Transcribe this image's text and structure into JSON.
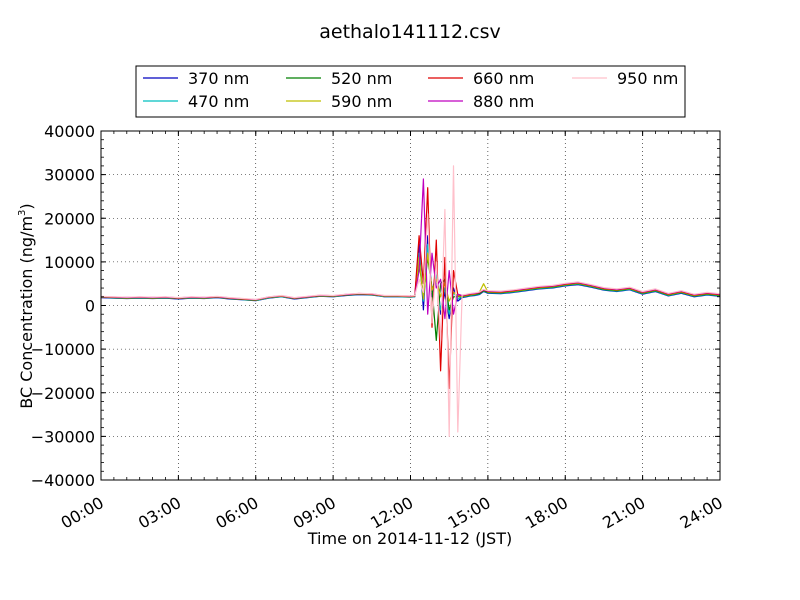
{
  "chart_data": {
    "type": "line",
    "title": "aethalo141112.csv",
    "xlabel": "Time on 2014-11-12 (JST)",
    "ylabel": "BC Concentration (ng/m",
    "ylabel_sup": "3",
    "ylabel_tail": ")",
    "xlim": [
      "00:00",
      "24:00"
    ],
    "ylim": [
      -40000,
      40000
    ],
    "x_ticks": [
      "00:00",
      "03:00",
      "06:00",
      "09:00",
      "12:00",
      "15:00",
      "18:00",
      "21:00",
      "24:00"
    ],
    "y_ticks": [
      "−40000",
      "−30000",
      "−20000",
      "−10000",
      "0",
      "10000",
      "20000",
      "30000",
      "40000"
    ],
    "grid": true,
    "legend_position": "top",
    "x": [
      "00:00",
      "00:30",
      "01:00",
      "01:30",
      "02:00",
      "02:30",
      "03:00",
      "03:30",
      "04:00",
      "04:30",
      "05:00",
      "05:30",
      "06:00",
      "06:30",
      "07:00",
      "07:30",
      "08:00",
      "08:30",
      "09:00",
      "09:30",
      "10:00",
      "10:30",
      "11:00",
      "11:30",
      "12:00",
      "12:10",
      "12:20",
      "12:30",
      "12:40",
      "12:50",
      "13:00",
      "13:10",
      "13:20",
      "13:30",
      "13:40",
      "13:50",
      "14:00",
      "14:10",
      "14:20",
      "14:30",
      "14:40",
      "14:50",
      "15:00",
      "15:30",
      "16:00",
      "16:30",
      "17:00",
      "17:30",
      "18:00",
      "18:30",
      "19:00",
      "19:30",
      "20:00",
      "20:30",
      "21:00",
      "21:30",
      "22:00",
      "22:30",
      "23:00",
      "23:30",
      "24:00"
    ],
    "series": [
      {
        "name": "370 nm",
        "color": "#0000bf",
        "values": [
          1800,
          1700,
          1600,
          1700,
          1600,
          1700,
          1500,
          1700,
          1600,
          1800,
          1500,
          1300,
          1100,
          1700,
          2000,
          1500,
          1800,
          2100,
          2000,
          2300,
          2500,
          2400,
          2000,
          2000,
          1900,
          2000,
          14000,
          -1000,
          16000,
          2000,
          9000,
          -2000,
          3000,
          -3000,
          4000,
          1000,
          1800,
          2000,
          2200,
          2300,
          2500,
          3200,
          2800,
          2700,
          3000,
          3400,
          3800,
          4000,
          4500,
          4800,
          4200,
          3500,
          3200,
          3600,
          2600,
          3200,
          2200,
          2800,
          2000,
          2400,
          2100
        ]
      },
      {
        "name": "470 nm",
        "color": "#00bfbf",
        "values": [
          1900,
          1750,
          1650,
          1750,
          1650,
          1750,
          1550,
          1750,
          1650,
          1850,
          1550,
          1350,
          1150,
          1750,
          2050,
          1550,
          1850,
          2150,
          2050,
          2350,
          2550,
          2450,
          2050,
          2050,
          1950,
          2050,
          12000,
          1000,
          14000,
          3000,
          7000,
          -1000,
          4000,
          -2000,
          3000,
          1500,
          1900,
          2100,
          2300,
          2400,
          2600,
          3300,
          2900,
          2800,
          3100,
          3500,
          3900,
          4100,
          4600,
          4900,
          4300,
          3600,
          3300,
          3700,
          2700,
          3300,
          2300,
          2900,
          2100,
          2500,
          2200
        ]
      },
      {
        "name": "520 nm",
        "color": "#007f00",
        "values": [
          1900,
          1800,
          1700,
          1800,
          1700,
          1800,
          1600,
          1800,
          1700,
          1900,
          1600,
          1400,
          1200,
          1800,
          2100,
          1600,
          1900,
          2200,
          2100,
          2400,
          2600,
          2500,
          2100,
          2100,
          2000,
          2100,
          10000,
          2000,
          11000,
          4000,
          -8000,
          5000,
          6000,
          -1000,
          2000,
          2000,
          2000,
          2200,
          2400,
          2500,
          2700,
          3400,
          3000,
          2900,
          3200,
          3600,
          4000,
          4200,
          4700,
          5000,
          4400,
          3700,
          3400,
          3800,
          2800,
          3400,
          2400,
          3000,
          2200,
          2600,
          2300
        ]
      },
      {
        "name": "590 nm",
        "color": "#bfbf00",
        "values": [
          1950,
          1850,
          1750,
          1850,
          1750,
          1850,
          1650,
          1850,
          1750,
          1950,
          1650,
          1450,
          1250,
          1850,
          2150,
          1650,
          1950,
          2250,
          2150,
          2450,
          2650,
          2550,
          2150,
          2150,
          2050,
          2150,
          11000,
          1500,
          12000,
          3500,
          6000,
          2000,
          5000,
          1000,
          3000,
          2200,
          2100,
          2300,
          2500,
          2600,
          3000,
          5000,
          3100,
          3000,
          3300,
          3700,
          4100,
          4300,
          4800,
          5100,
          4500,
          3800,
          3500,
          3900,
          2900,
          3500,
          2500,
          3100,
          2300,
          2700,
          2400
        ]
      },
      {
        "name": "660 nm",
        "color": "#df0000",
        "values": [
          2000,
          1900,
          1800,
          1900,
          1800,
          1900,
          1700,
          1900,
          1800,
          2000,
          1700,
          1500,
          1300,
          1900,
          2200,
          1700,
          2000,
          2300,
          2200,
          2500,
          2700,
          2600,
          2200,
          2200,
          2100,
          2200,
          16000,
          5000,
          27000,
          -5000,
          15000,
          -15000,
          11000,
          -19000,
          8000,
          2500,
          2200,
          2400,
          2600,
          2700,
          2900,
          3500,
          3200,
          3100,
          3400,
          3800,
          4200,
          4400,
          4900,
          5200,
          4600,
          3900,
          3600,
          4000,
          3000,
          3600,
          2600,
          3200,
          2400,
          2800,
          2500
        ]
      },
      {
        "name": "880 nm",
        "color": "#bf00bf",
        "values": [
          2050,
          1950,
          1850,
          1950,
          1850,
          1950,
          1750,
          1950,
          1850,
          2050,
          1750,
          1550,
          1350,
          1950,
          2250,
          1750,
          2050,
          2350,
          2250,
          2550,
          2750,
          2650,
          2250,
          2250,
          2150,
          2250,
          8000,
          29000,
          -2000,
          12000,
          4000,
          6000,
          -3000,
          8000,
          -2000,
          2600,
          2300,
          2500,
          2700,
          2800,
          3000,
          3600,
          3300,
          3200,
          3500,
          3900,
          4300,
          4500,
          5000,
          5300,
          4700,
          4000,
          3700,
          4100,
          3100,
          3700,
          2700,
          3300,
          2500,
          2900,
          2600
        ]
      },
      {
        "name": "950 nm",
        "color": "#ffc0cb",
        "values": [
          2100,
          2000,
          1900,
          2000,
          1900,
          2000,
          1800,
          2000,
          1900,
          2100,
          1800,
          1600,
          1400,
          2000,
          2300,
          1800,
          2100,
          2400,
          2300,
          2600,
          2800,
          2700,
          2300,
          2300,
          2200,
          2300,
          6000,
          3000,
          21000,
          -4000,
          10000,
          -8000,
          22000,
          -30000,
          32000,
          -29000,
          2400,
          2600,
          2800,
          2900,
          3100,
          3700,
          3400,
          3300,
          3600,
          4000,
          4400,
          4600,
          5100,
          5400,
          4800,
          4100,
          3800,
          4200,
          3200,
          3800,
          2800,
          3400,
          2600,
          3000,
          2700
        ]
      }
    ]
  }
}
